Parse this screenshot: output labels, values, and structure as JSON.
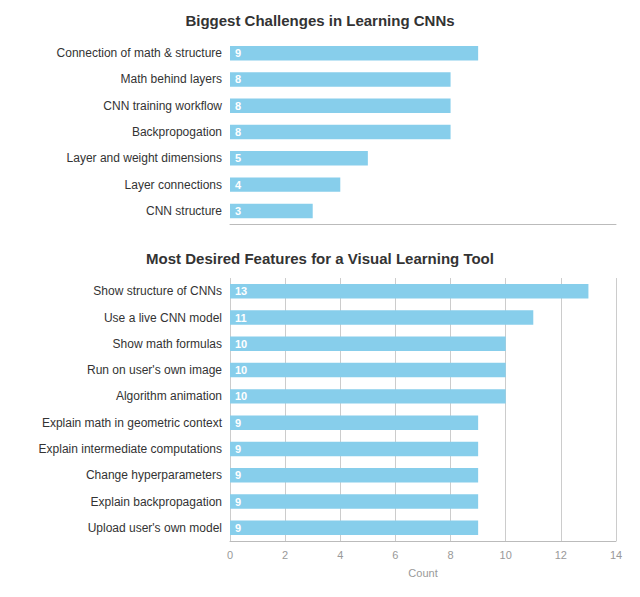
{
  "chart_data": [
    {
      "type": "bar",
      "orientation": "horizontal",
      "title": "Biggest Challenges in Learning CNNs",
      "categories": [
        "Connection of math & structure",
        "Math behind layers",
        "CNN training workflow",
        "Backpropogation",
        "Layer and weight dimensions",
        "Layer connections",
        "CNN structure"
      ],
      "values": [
        9,
        8,
        8,
        8,
        5,
        4,
        3
      ],
      "color": "#87CEEB",
      "xlim": [
        0,
        14
      ],
      "data_labels": true,
      "tick_labels": "y",
      "grid": false
    },
    {
      "type": "bar",
      "orientation": "horizontal",
      "title": "Most Desired Features for a Visual Learning Tool",
      "categories": [
        "Show structure of CNNs",
        "Use a live CNN model",
        "Show math formulas",
        "Run on user's own image",
        "Algorithm animation",
        "Explain math in geometric context",
        "Explain intermediate computations",
        "Change hyperparameters",
        "Explain backpropagation",
        "Upload user's own model"
      ],
      "values": [
        13,
        11,
        10,
        10,
        10,
        9,
        9,
        9,
        9,
        9
      ],
      "color": "#87CEEB",
      "xlim": [
        0,
        14
      ],
      "xticks": [
        0,
        2,
        4,
        6,
        8,
        10,
        12,
        14
      ],
      "xlabel": "Count",
      "data_labels": true,
      "grid": true
    }
  ]
}
